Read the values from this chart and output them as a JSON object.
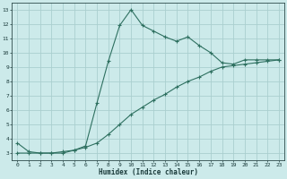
{
  "xlabel": "Humidex (Indice chaleur)",
  "ylabel": "",
  "background_color": "#cceaea",
  "grid_color": "#aacfcf",
  "line_color": "#2e7060",
  "xlim": [
    -0.5,
    23.5
  ],
  "ylim": [
    2.5,
    13.5
  ],
  "xticks": [
    0,
    1,
    2,
    3,
    4,
    5,
    6,
    7,
    8,
    9,
    10,
    11,
    12,
    13,
    14,
    15,
    16,
    17,
    18,
    19,
    20,
    21,
    22,
    23
  ],
  "yticks": [
    3,
    4,
    5,
    6,
    7,
    8,
    9,
    10,
    11,
    12,
    13
  ],
  "curve1_x": [
    0,
    1,
    2,
    3,
    4,
    5,
    6,
    7,
    8,
    9,
    10,
    11,
    12,
    13,
    14,
    15,
    16,
    17,
    18,
    19,
    20,
    21,
    22,
    23
  ],
  "curve1_y": [
    3.7,
    3.1,
    3.0,
    3.0,
    3.0,
    3.2,
    3.5,
    6.5,
    9.4,
    11.9,
    13.0,
    11.9,
    11.5,
    11.1,
    10.8,
    11.1,
    10.5,
    10.0,
    9.3,
    9.2,
    9.5,
    9.5,
    9.5,
    9.5
  ],
  "curve2_x": [
    0,
    1,
    2,
    3,
    4,
    5,
    6,
    7,
    8,
    9,
    10,
    11,
    12,
    13,
    14,
    15,
    16,
    17,
    18,
    19,
    20,
    21,
    22,
    23
  ],
  "curve2_y": [
    3.0,
    3.0,
    3.0,
    3.0,
    3.1,
    3.2,
    3.4,
    3.7,
    4.3,
    5.0,
    5.7,
    6.2,
    6.7,
    7.1,
    7.6,
    8.0,
    8.3,
    8.7,
    9.0,
    9.1,
    9.2,
    9.3,
    9.4,
    9.5
  ]
}
